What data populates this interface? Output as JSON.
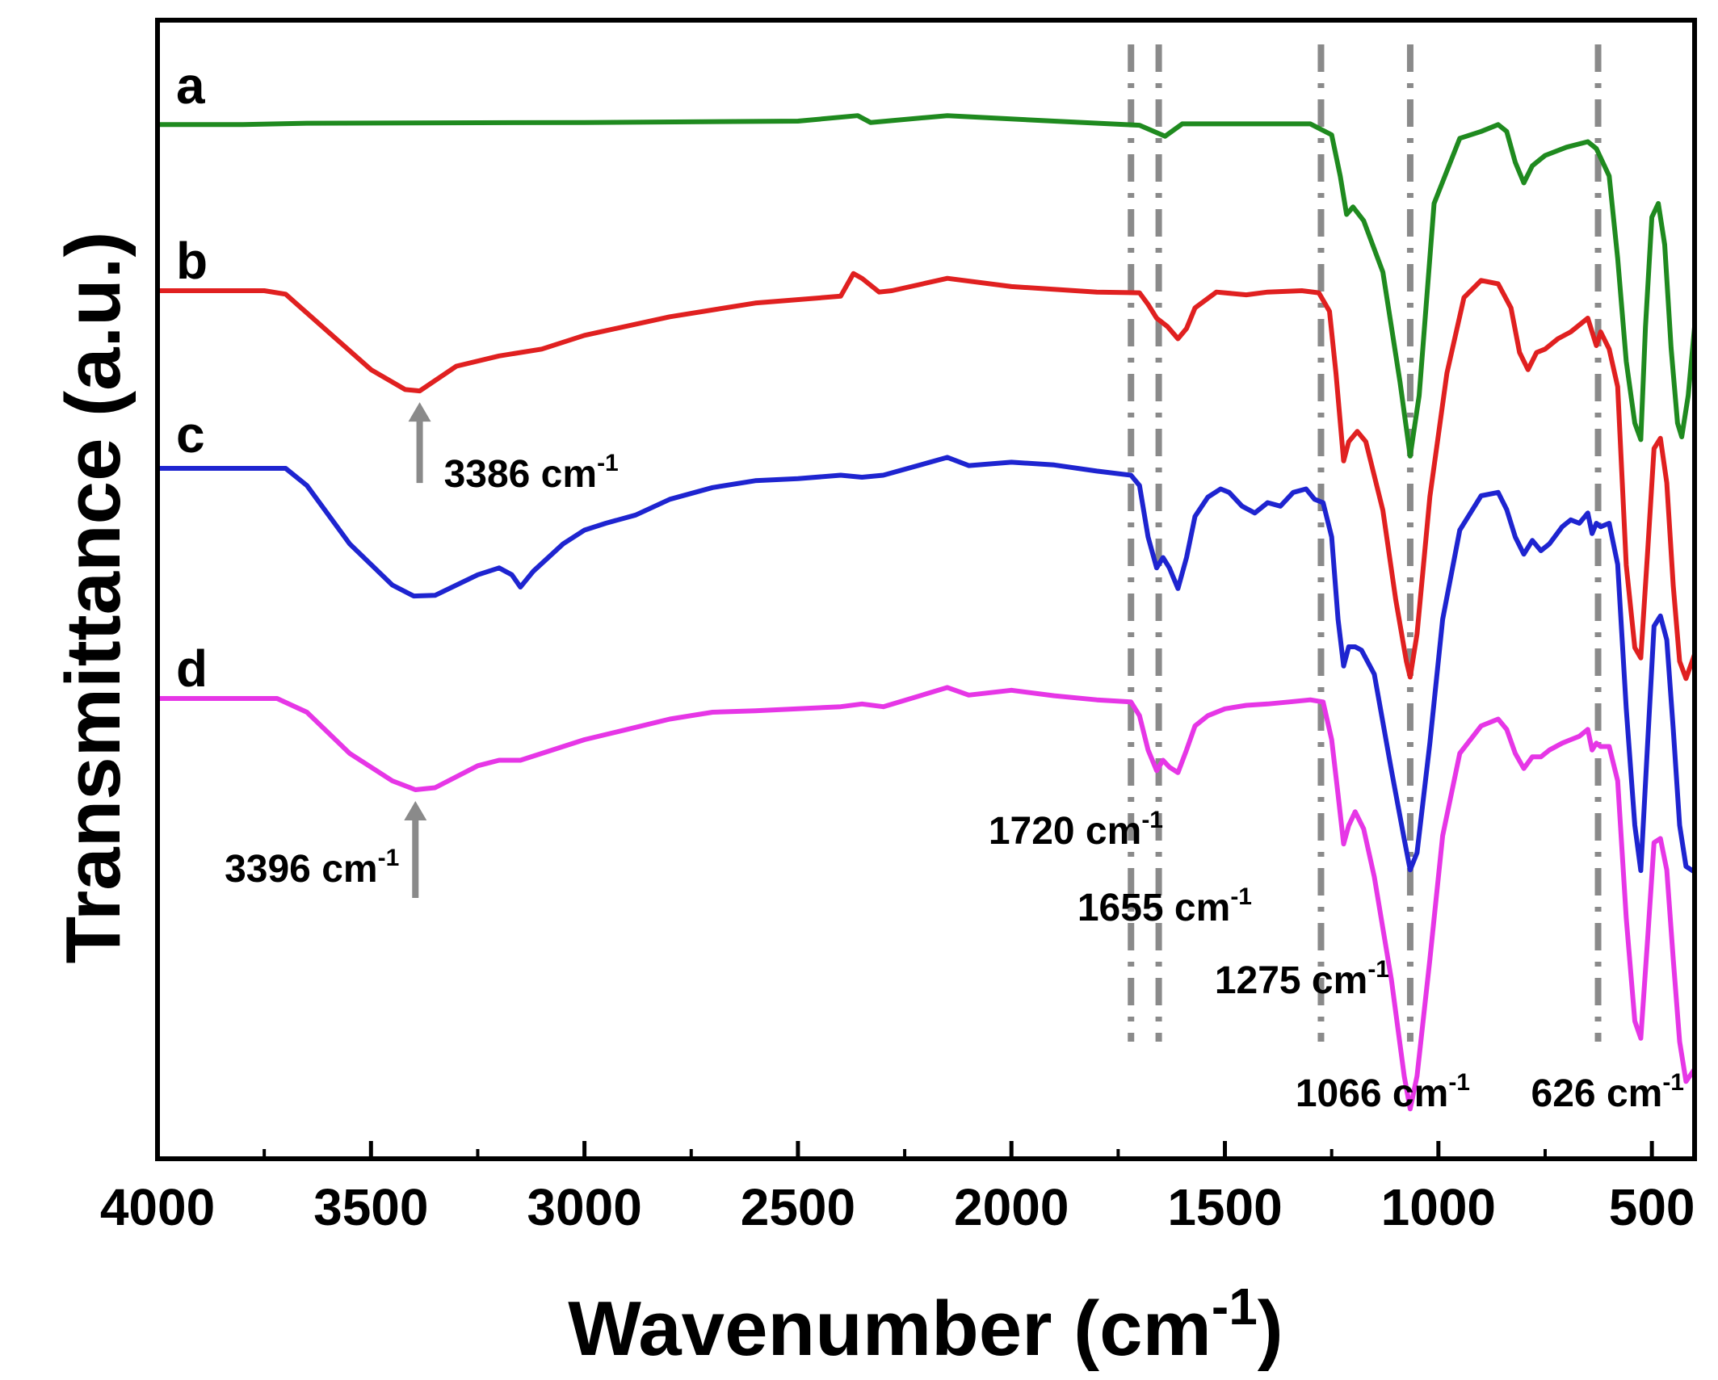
{
  "chart_data": {
    "type": "line",
    "title": "",
    "xlabel": "Wavenumber (cm",
    "xlabel_sup": "-1",
    "xlabel_close": ")",
    "ylabel": "Transmittance (a.u.)",
    "xlim": [
      4000,
      400
    ],
    "x_reversed": true,
    "xticks": [
      4000,
      3500,
      3000,
      2500,
      2000,
      1500,
      1000,
      500
    ],
    "xtick_labels": [
      "4000",
      "3500",
      "3000",
      "2500",
      "2000",
      "1500",
      "1000",
      "500"
    ],
    "yticks_shown": false,
    "grid": false,
    "series": [
      {
        "name": "a",
        "color": "#1f8a1f",
        "points": [
          [
            4000,
            0.5
          ],
          [
            3800,
            0.5
          ],
          [
            3650,
            0.3
          ],
          [
            3000,
            0.2
          ],
          [
            2500,
            0.0
          ],
          [
            2360,
            -0.8
          ],
          [
            2330,
            0.2
          ],
          [
            2150,
            -0.8
          ],
          [
            1900,
            0.0
          ],
          [
            1700,
            0.6
          ],
          [
            1640,
            2.2
          ],
          [
            1600,
            0.4
          ],
          [
            1300,
            0.4
          ],
          [
            1250,
            2.0
          ],
          [
            1230,
            8.0
          ],
          [
            1215,
            13.6
          ],
          [
            1200,
            12.5
          ],
          [
            1175,
            14.5
          ],
          [
            1130,
            22
          ],
          [
            1090,
            38
          ],
          [
            1066,
            48.8
          ],
          [
            1045,
            40
          ],
          [
            1010,
            12
          ],
          [
            950,
            2.5
          ],
          [
            900,
            1.5
          ],
          [
            860,
            0.5
          ],
          [
            840,
            1.5
          ],
          [
            820,
            6
          ],
          [
            800,
            9.0
          ],
          [
            780,
            6.5
          ],
          [
            750,
            5.0
          ],
          [
            700,
            3.8
          ],
          [
            650,
            3.0
          ],
          [
            630,
            4.0
          ],
          [
            600,
            8.0
          ],
          [
            580,
            20
          ],
          [
            560,
            35
          ],
          [
            540,
            44
          ],
          [
            526,
            46.4
          ],
          [
            515,
            30
          ],
          [
            500,
            14
          ],
          [
            485,
            12
          ],
          [
            470,
            18
          ],
          [
            455,
            33
          ],
          [
            440,
            44
          ],
          [
            430,
            46
          ],
          [
            415,
            40
          ],
          [
            400,
            30
          ]
        ]
      },
      {
        "name": "b",
        "color": "#e02020",
        "points": [
          [
            4000,
            0.0
          ],
          [
            3750,
            0.0
          ],
          [
            3700,
            0.5
          ],
          [
            3600,
            6
          ],
          [
            3500,
            11.5
          ],
          [
            3420,
            14.4
          ],
          [
            3386,
            14.6
          ],
          [
            3300,
            11
          ],
          [
            3200,
            9.5
          ],
          [
            3100,
            8.5
          ],
          [
            3000,
            6.5
          ],
          [
            2800,
            3.8
          ],
          [
            2600,
            1.8
          ],
          [
            2400,
            0.8
          ],
          [
            2370,
            -2.5
          ],
          [
            2350,
            -1.8
          ],
          [
            2310,
            0.2
          ],
          [
            2280,
            0.0
          ],
          [
            2150,
            -1.8
          ],
          [
            2000,
            -0.6
          ],
          [
            1800,
            0.2
          ],
          [
            1700,
            0.3
          ],
          [
            1680,
            2.0
          ],
          [
            1660,
            4.0
          ],
          [
            1635,
            5.2
          ],
          [
            1610,
            7.0
          ],
          [
            1590,
            5.5
          ],
          [
            1570,
            2.5
          ],
          [
            1520,
            0.2
          ],
          [
            1450,
            0.6
          ],
          [
            1400,
            0.2
          ],
          [
            1320,
            0.0
          ],
          [
            1280,
            0.3
          ],
          [
            1255,
            3.0
          ],
          [
            1240,
            12
          ],
          [
            1222,
            24.8
          ],
          [
            1210,
            22
          ],
          [
            1190,
            20.5
          ],
          [
            1170,
            22
          ],
          [
            1130,
            32
          ],
          [
            1100,
            45
          ],
          [
            1075,
            54
          ],
          [
            1066,
            56.3
          ],
          [
            1050,
            50
          ],
          [
            1020,
            30
          ],
          [
            980,
            12
          ],
          [
            940,
            1.0
          ],
          [
            900,
            -1.5
          ],
          [
            860,
            -1.0
          ],
          [
            830,
            2.5
          ],
          [
            810,
            9.0
          ],
          [
            790,
            11.5
          ],
          [
            770,
            9.0
          ],
          [
            750,
            8.5
          ],
          [
            720,
            7.0
          ],
          [
            690,
            6.0
          ],
          [
            650,
            4.0
          ],
          [
            640,
            6.0
          ],
          [
            630,
            8.0
          ],
          [
            620,
            6.0
          ],
          [
            600,
            8.5
          ],
          [
            580,
            14
          ],
          [
            560,
            40
          ],
          [
            540,
            52
          ],
          [
            526,
            53.5
          ],
          [
            510,
            38
          ],
          [
            495,
            23
          ],
          [
            480,
            21.5
          ],
          [
            465,
            28
          ],
          [
            450,
            43
          ],
          [
            435,
            54
          ],
          [
            420,
            56.5
          ],
          [
            400,
            53.0
          ]
        ]
      },
      {
        "name": "c",
        "color": "#1e24d0",
        "points": [
          [
            4000,
            0.0
          ],
          [
            3700,
            0.0
          ],
          [
            3650,
            2.5
          ],
          [
            3550,
            11
          ],
          [
            3450,
            17
          ],
          [
            3400,
            18.6
          ],
          [
            3350,
            18.5
          ],
          [
            3250,
            15.5
          ],
          [
            3200,
            14.5
          ],
          [
            3170,
            15.5
          ],
          [
            3150,
            17.3
          ],
          [
            3120,
            15
          ],
          [
            3050,
            11
          ],
          [
            3000,
            9.0
          ],
          [
            2950,
            8.0
          ],
          [
            2880,
            6.8
          ],
          [
            2800,
            4.5
          ],
          [
            2700,
            2.8
          ],
          [
            2600,
            1.8
          ],
          [
            2500,
            1.5
          ],
          [
            2400,
            1.0
          ],
          [
            2350,
            1.3
          ],
          [
            2300,
            1.0
          ],
          [
            2150,
            -1.6
          ],
          [
            2100,
            -0.4
          ],
          [
            2000,
            -0.9
          ],
          [
            1900,
            -0.5
          ],
          [
            1800,
            0.4
          ],
          [
            1720,
            1.0
          ],
          [
            1700,
            2.5
          ],
          [
            1680,
            10
          ],
          [
            1660,
            14.5
          ],
          [
            1645,
            13.0
          ],
          [
            1630,
            14.5
          ],
          [
            1610,
            17.5
          ],
          [
            1590,
            13
          ],
          [
            1570,
            7.0
          ],
          [
            1540,
            4.2
          ],
          [
            1510,
            3.0
          ],
          [
            1490,
            3.5
          ],
          [
            1460,
            5.5
          ],
          [
            1430,
            6.5
          ],
          [
            1400,
            5.0
          ],
          [
            1370,
            5.5
          ],
          [
            1340,
            3.5
          ],
          [
            1310,
            3.0
          ],
          [
            1290,
            4.5
          ],
          [
            1270,
            5.0
          ],
          [
            1250,
            10
          ],
          [
            1235,
            22
          ],
          [
            1222,
            28.8
          ],
          [
            1210,
            26
          ],
          [
            1195,
            26
          ],
          [
            1180,
            26.5
          ],
          [
            1150,
            30
          ],
          [
            1110,
            44
          ],
          [
            1080,
            54
          ],
          [
            1066,
            58.5
          ],
          [
            1050,
            56
          ],
          [
            1020,
            40
          ],
          [
            990,
            22
          ],
          [
            950,
            9.0
          ],
          [
            900,
            4.0
          ],
          [
            860,
            3.5
          ],
          [
            840,
            6.0
          ],
          [
            820,
            10
          ],
          [
            800,
            12.5
          ],
          [
            780,
            10.5
          ],
          [
            760,
            12.0
          ],
          [
            740,
            11.0
          ],
          [
            710,
            8.5
          ],
          [
            690,
            7.5
          ],
          [
            670,
            8.0
          ],
          [
            650,
            6.5
          ],
          [
            640,
            9.5
          ],
          [
            630,
            8.0
          ],
          [
            620,
            8.5
          ],
          [
            600,
            8.0
          ],
          [
            580,
            14
          ],
          [
            560,
            35
          ],
          [
            540,
            52
          ],
          [
            526,
            58.6
          ],
          [
            510,
            40
          ],
          [
            495,
            23
          ],
          [
            480,
            21.5
          ],
          [
            465,
            25
          ],
          [
            450,
            38
          ],
          [
            435,
            52
          ],
          [
            420,
            58
          ],
          [
            400,
            58.8
          ]
        ]
      },
      {
        "name": "d",
        "color": "#e636e6",
        "points": [
          [
            4000,
            0.0
          ],
          [
            3720,
            0.0
          ],
          [
            3650,
            2.0
          ],
          [
            3550,
            8.0
          ],
          [
            3450,
            12.0
          ],
          [
            3396,
            13.3
          ],
          [
            3350,
            13.0
          ],
          [
            3250,
            9.8
          ],
          [
            3200,
            9.0
          ],
          [
            3150,
            9.0
          ],
          [
            3100,
            8.0
          ],
          [
            3000,
            6.0
          ],
          [
            2900,
            4.5
          ],
          [
            2800,
            3.0
          ],
          [
            2700,
            2.0
          ],
          [
            2600,
            1.8
          ],
          [
            2500,
            1.5
          ],
          [
            2400,
            1.2
          ],
          [
            2350,
            0.8
          ],
          [
            2300,
            1.2
          ],
          [
            2150,
            -1.6
          ],
          [
            2100,
            -0.5
          ],
          [
            2000,
            -1.2
          ],
          [
            1900,
            -0.4
          ],
          [
            1800,
            0.2
          ],
          [
            1720,
            0.5
          ],
          [
            1700,
            2.5
          ],
          [
            1680,
            7.5
          ],
          [
            1660,
            10.5
          ],
          [
            1645,
            9.0
          ],
          [
            1630,
            10.0
          ],
          [
            1610,
            10.8
          ],
          [
            1590,
            7.5
          ],
          [
            1570,
            4.0
          ],
          [
            1540,
            2.5
          ],
          [
            1500,
            1.5
          ],
          [
            1450,
            1.0
          ],
          [
            1400,
            0.8
          ],
          [
            1350,
            0.5
          ],
          [
            1300,
            0.2
          ],
          [
            1270,
            0.5
          ],
          [
            1250,
            6.0
          ],
          [
            1235,
            14
          ],
          [
            1222,
            21.2
          ],
          [
            1210,
            18.5
          ],
          [
            1195,
            16.5
          ],
          [
            1175,
            19
          ],
          [
            1150,
            26
          ],
          [
            1110,
            41
          ],
          [
            1080,
            55
          ],
          [
            1066,
            59.8
          ],
          [
            1050,
            55
          ],
          [
            1020,
            38
          ],
          [
            990,
            20
          ],
          [
            950,
            8.0
          ],
          [
            900,
            4.0
          ],
          [
            860,
            3.0
          ],
          [
            840,
            4.5
          ],
          [
            820,
            8.0
          ],
          [
            800,
            10.2
          ],
          [
            780,
            8.5
          ],
          [
            760,
            8.5
          ],
          [
            740,
            7.5
          ],
          [
            710,
            6.5
          ],
          [
            690,
            6.0
          ],
          [
            670,
            5.5
          ],
          [
            650,
            4.5
          ],
          [
            640,
            7.5
          ],
          [
            630,
            6.5
          ],
          [
            620,
            7.0
          ],
          [
            600,
            7.0
          ],
          [
            580,
            12
          ],
          [
            560,
            32
          ],
          [
            540,
            47
          ],
          [
            526,
            49.5
          ],
          [
            510,
            35
          ],
          [
            495,
            21
          ],
          [
            480,
            20.4
          ],
          [
            465,
            25
          ],
          [
            450,
            38
          ],
          [
            435,
            50
          ],
          [
            420,
            55.8
          ],
          [
            400,
            54.0
          ]
        ]
      }
    ],
    "dashed_lines": [
      1720,
      1655,
      1275,
      1066,
      626
    ],
    "peak_annotations": [
      {
        "label": "3386 cm",
        "sup": "-1",
        "x": 3386,
        "series": "b"
      },
      {
        "label": "3396 cm",
        "sup": "-1",
        "x": 3396,
        "series": "d"
      }
    ],
    "annotations": [
      {
        "label": "1720 cm",
        "sup": "-1",
        "x": 1720
      },
      {
        "label": "1655 cm",
        "sup": "-1",
        "x": 1655
      },
      {
        "label": "1275 cm",
        "sup": "-1",
        "x": 1275
      },
      {
        "label": "1066 cm",
        "sup": "-1",
        "x": 1066
      },
      {
        "label": "626 cm",
        "sup": "-1",
        "x": 626
      }
    ]
  }
}
